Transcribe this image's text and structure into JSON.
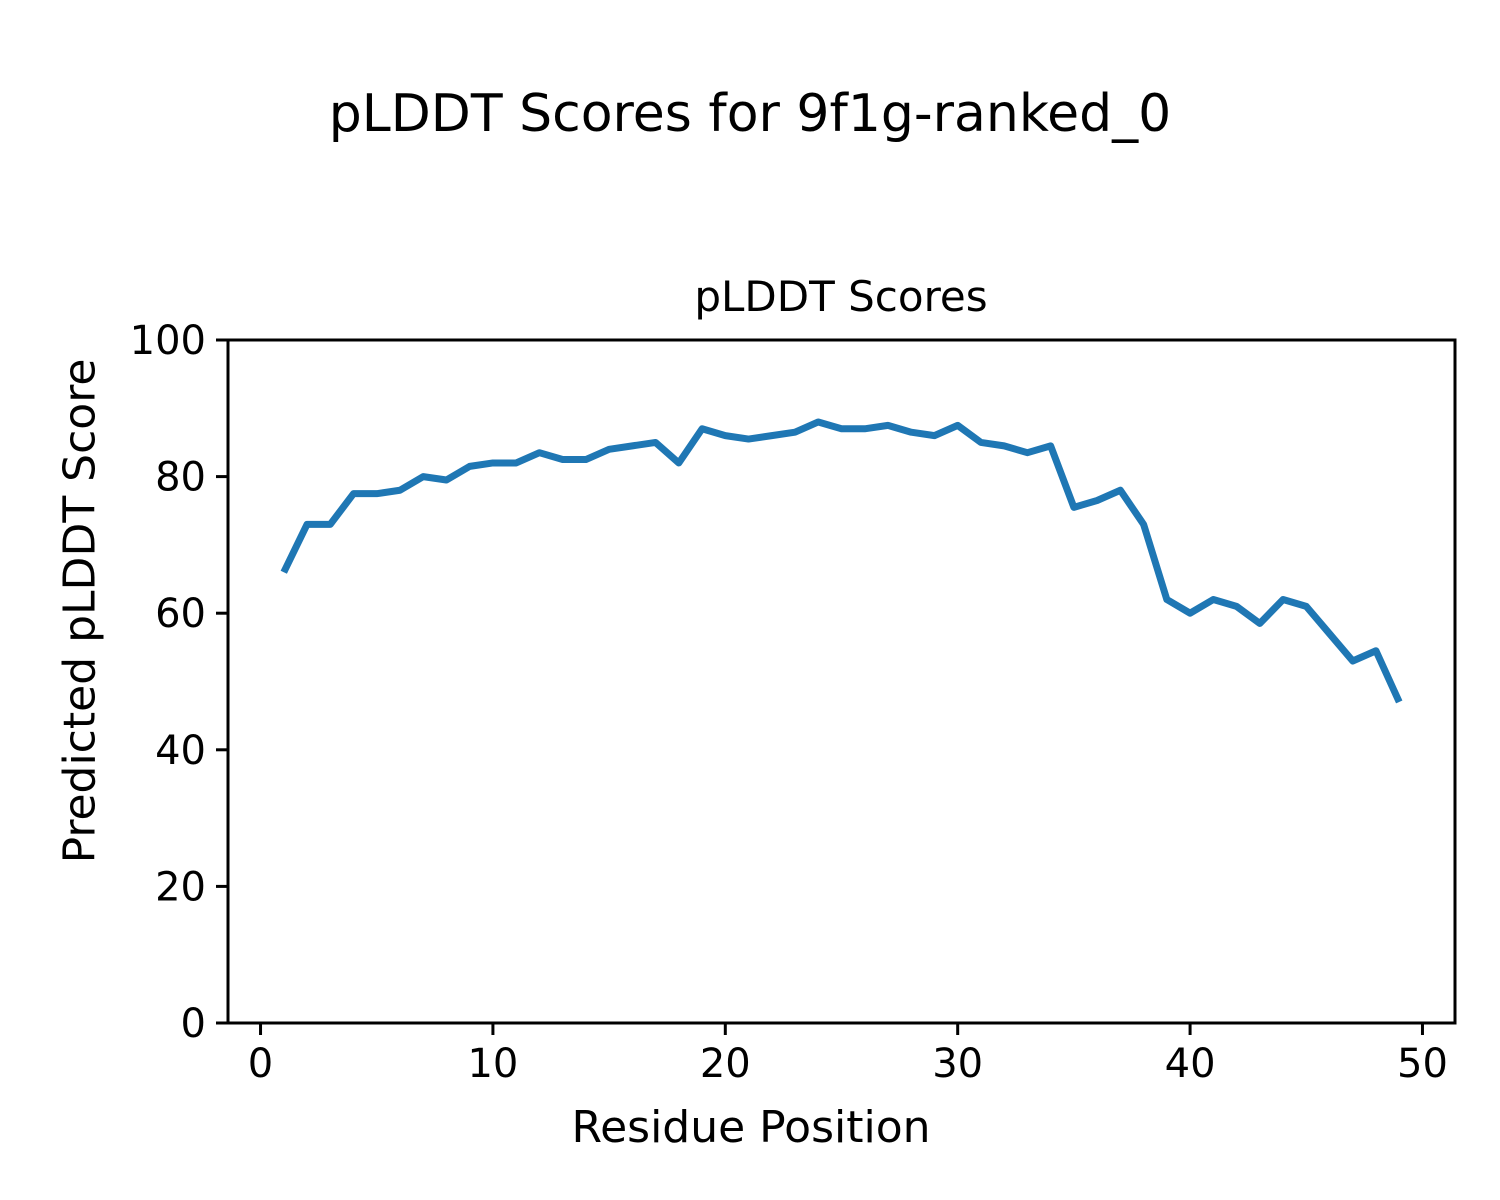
{
  "figure_title": "pLDDT Scores for 9f1g-ranked_0",
  "chart_data": {
    "type": "line",
    "title": "pLDDT Scores",
    "xlabel": "Residue Position",
    "ylabel": "Predicted pLDDT Score",
    "x": [
      1,
      2,
      3,
      4,
      5,
      6,
      7,
      8,
      9,
      10,
      11,
      12,
      13,
      14,
      15,
      16,
      17,
      18,
      19,
      20,
      21,
      22,
      23,
      24,
      25,
      26,
      27,
      28,
      29,
      30,
      31,
      32,
      33,
      34,
      35,
      36,
      37,
      38,
      39,
      40,
      41,
      42,
      43,
      44,
      45,
      46,
      47,
      48,
      49
    ],
    "series": [
      {
        "name": "pLDDT",
        "values": [
          66,
          73,
          73,
          77.5,
          77.5,
          78,
          80,
          79.5,
          81.5,
          82,
          82,
          83.5,
          82.5,
          82.5,
          84,
          84.5,
          85,
          82,
          87,
          86,
          85.5,
          86,
          86.5,
          88,
          87,
          87,
          87.5,
          86.5,
          86,
          87.5,
          85,
          84.5,
          83.5,
          84.5,
          75.5,
          76.5,
          78,
          73,
          62,
          60,
          62,
          61,
          58.5,
          62,
          61,
          57,
          53,
          54.5,
          47
        ]
      }
    ],
    "xlim": [
      -1.4,
      51.4
    ],
    "ylim": [
      0,
      100
    ],
    "xticks": [
      0,
      10,
      20,
      30,
      40,
      50
    ],
    "yticks": [
      0,
      20,
      40,
      60,
      80,
      100
    ],
    "grid": false,
    "legend": null,
    "line_color": "#1f77b4",
    "axis_color": "#000000",
    "background": "#ffffff"
  }
}
